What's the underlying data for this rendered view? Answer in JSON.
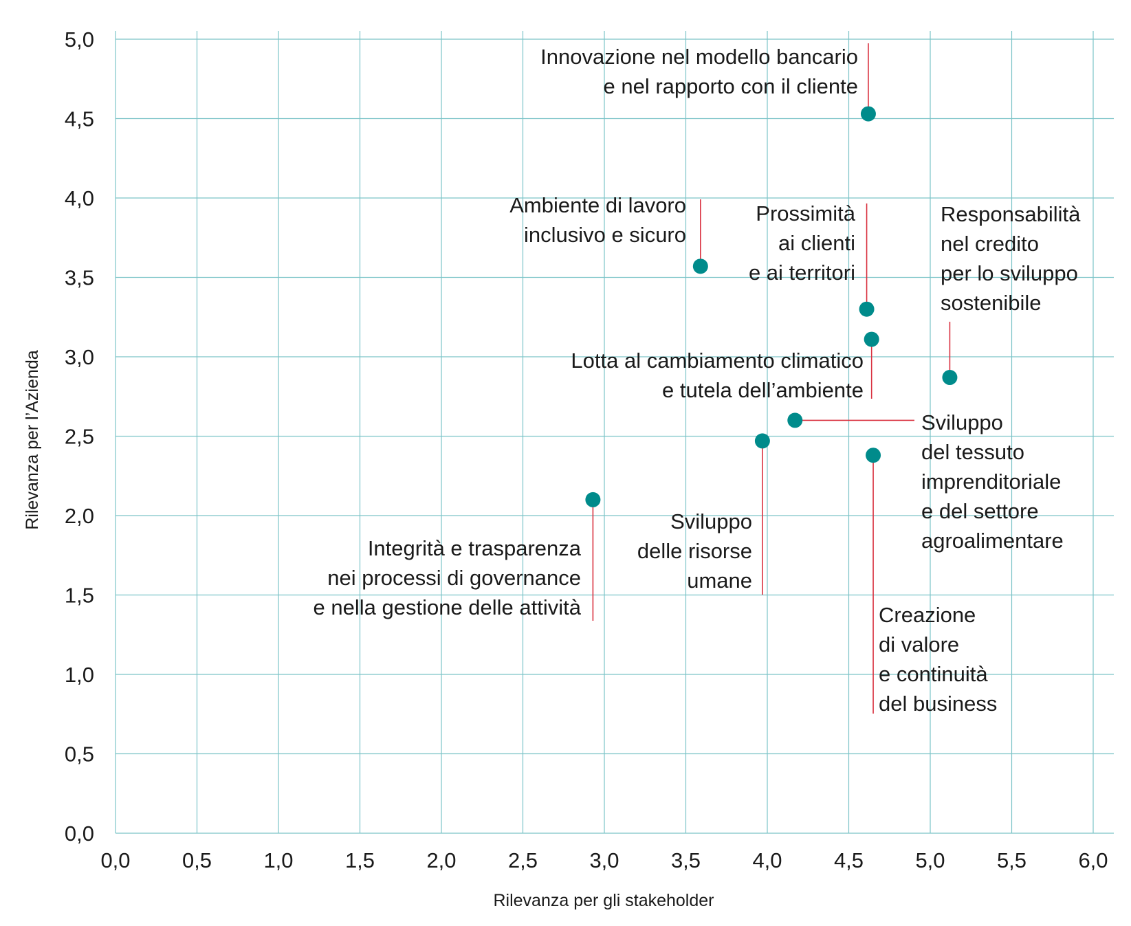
{
  "chart_data": {
    "type": "scatter",
    "title": "",
    "xlabel": "Rilevanza per gli stakeholder",
    "ylabel": "Rilevanza per l’Azienda",
    "xlim": [
      0,
      6
    ],
    "ylim": [
      0,
      5
    ],
    "x_ticks": [
      "0,0",
      "0,5",
      "1,0",
      "1,5",
      "2,0",
      "2,5",
      "3,0",
      "3,5",
      "4,0",
      "4,5",
      "5,0",
      "5,5",
      "6,0"
    ],
    "y_ticks": [
      "0,0",
      "0,5",
      "1,0",
      "1,5",
      "2,0",
      "2,5",
      "3,0",
      "3,5",
      "4,0",
      "4,5",
      "5,0"
    ],
    "grid": true,
    "colors": {
      "point": "#008b8b",
      "grid": "#7cc4c8",
      "leader": "#d9303f"
    },
    "points": [
      {
        "x": 4.62,
        "y": 4.53,
        "label": [
          "Innovazione nel modello bancario",
          "e nel rapporto con il cliente"
        ]
      },
      {
        "x": 3.59,
        "y": 3.57,
        "label": [
          "Ambiente di lavoro",
          "inclusivo e sicuro"
        ]
      },
      {
        "x": 4.61,
        "y": 3.3,
        "label": [
          "Prossimità",
          "ai clienti",
          "e ai territori"
        ]
      },
      {
        "x": 5.12,
        "y": 2.87,
        "label": [
          "Responsabilità",
          "nel credito",
          "per lo sviluppo",
          "sostenibile"
        ]
      },
      {
        "x": 4.64,
        "y": 3.11,
        "label": [
          "Lotta al cambiamento climatico",
          "e tutela dell’ambiente"
        ]
      },
      {
        "x": 4.17,
        "y": 2.6,
        "label": [
          "Sviluppo",
          "del tessuto",
          "imprenditoriale",
          "e del settore",
          "agroalimentare"
        ]
      },
      {
        "x": 3.97,
        "y": 2.47,
        "label": [
          "Sviluppo",
          "delle risorse",
          "umane"
        ]
      },
      {
        "x": 2.93,
        "y": 2.1,
        "label": [
          "Integrità e trasparenza",
          "nei processi di governance",
          "e nella gestione delle attività"
        ]
      },
      {
        "x": 4.65,
        "y": 2.38,
        "label": [
          "Creazione",
          "di valore",
          "e continuità",
          "del business"
        ]
      }
    ]
  }
}
